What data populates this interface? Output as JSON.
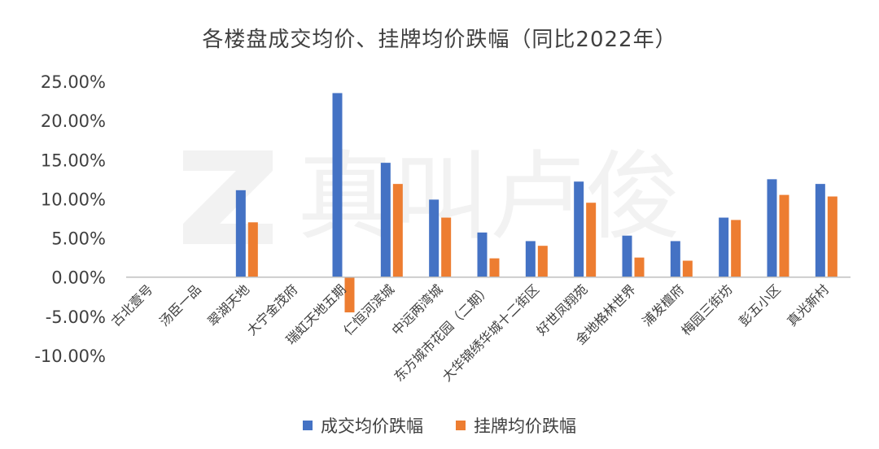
{
  "colors": {
    "series1": "#4472C4",
    "series2": "#ED7D31",
    "axis": "#BFBFBF",
    "text": "#404040"
  },
  "chart_data": {
    "type": "bar",
    "title": "各楼盘成交均价、挂牌均价跌幅（同比2022年）",
    "xlabel": "",
    "ylabel": "",
    "ylim": [
      -0.1,
      0.25
    ],
    "yticks": [
      0.25,
      0.2,
      0.15,
      0.1,
      0.05,
      0.0,
      -0.05,
      -0.1
    ],
    "ytick_labels": [
      "25.00%",
      "20.00%",
      "15.00%",
      "10.00%",
      "5.00%",
      "0.00%",
      "-5.00%",
      "-10.00%"
    ],
    "categories": [
      "古北壹号",
      "汤臣一品",
      "翠湖天地",
      "大宁金茂府",
      "瑞虹天地五期",
      "仁恒河滨城",
      "中远两湾城",
      "东方城市花园（二期）",
      "大华锦绣华城十二街区",
      "好世凤翔苑",
      "金地格林世界",
      "浦发檀府",
      "梅园三街坊",
      "彭五小区",
      "真光新村"
    ],
    "series": [
      {
        "name": "成交均价跌幅",
        "values": [
          null,
          null,
          0.111,
          null,
          0.235,
          0.146,
          0.099,
          0.057,
          0.046,
          0.122,
          0.053,
          0.046,
          0.076,
          0.125,
          0.119
        ]
      },
      {
        "name": "挂牌均价跌幅",
        "values": [
          null,
          null,
          0.07,
          null,
          -0.045,
          0.119,
          0.076,
          0.024,
          0.04,
          0.095,
          0.025,
          0.021,
          0.073,
          0.105,
          0.103
        ]
      }
    ],
    "legend_position": "bottom",
    "grid": false
  },
  "watermark": {
    "text": "真叫卢俊"
  }
}
